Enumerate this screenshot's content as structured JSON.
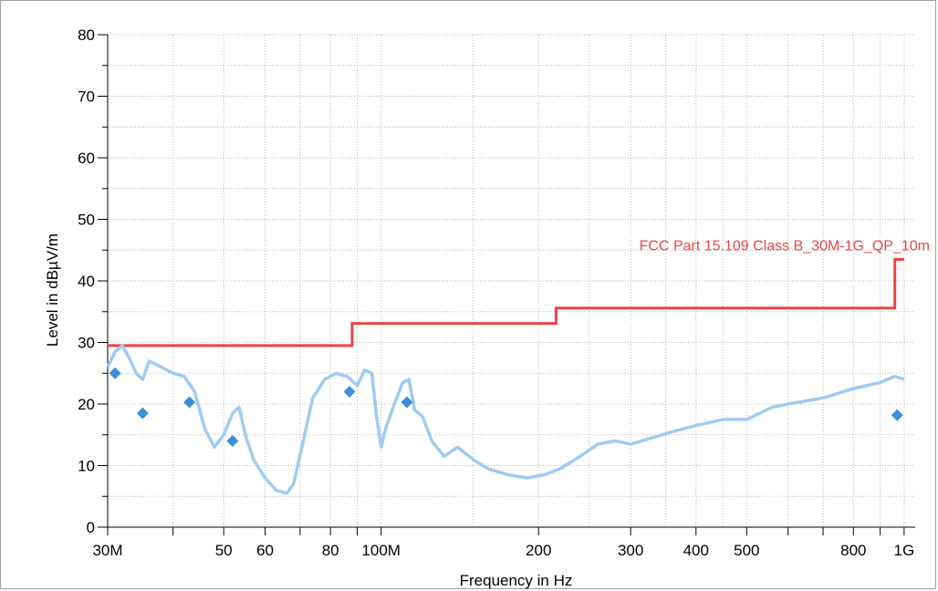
{
  "chart_data": {
    "type": "line",
    "xlabel": "Frequency in Hz",
    "ylabel": "Level in dBµV/m",
    "x_scale": "log",
    "xlim": [
      30000000,
      1050000000
    ],
    "ylim": [
      0,
      80
    ],
    "y_ticks": [
      0,
      10,
      20,
      30,
      40,
      50,
      60,
      70,
      80
    ],
    "x_ticks": [
      {
        "value": 30000000,
        "label": "30M"
      },
      {
        "value": 50000000,
        "label": "50"
      },
      {
        "value": 60000000,
        "label": "60"
      },
      {
        "value": 80000000,
        "label": "80"
      },
      {
        "value": 100000000,
        "label": "100M"
      },
      {
        "value": 200000000,
        "label": "200"
      },
      {
        "value": 300000000,
        "label": "300"
      },
      {
        "value": 400000000,
        "label": "400"
      },
      {
        "value": 500000000,
        "label": "500"
      },
      {
        "value": 800000000,
        "label": "800"
      },
      {
        "value": 1000000000,
        "label": "1G"
      }
    ],
    "x_minor_ticks": [
      40000000,
      70000000,
      90000000,
      600000000,
      700000000,
      900000000
    ],
    "grid": true,
    "colors": {
      "limit": "#ee4444",
      "trace": "#9ecbf2",
      "points": "#3d8fd6"
    },
    "series": [
      {
        "name": "FCC Part 15.109 Class B_30M-1G_QP_10m",
        "kind": "limit",
        "x": [
          30000000,
          88000000,
          88000000,
          216000000,
          216000000,
          960000000,
          960000000,
          1000000000
        ],
        "y": [
          29.5,
          29.5,
          33.1,
          33.1,
          35.6,
          35.6,
          43.5,
          43.5
        ]
      },
      {
        "kind": "trace",
        "x": [
          30000000,
          31000000,
          32000000,
          33000000,
          34000000,
          35000000,
          36000000,
          38000000,
          40000000,
          42000000,
          44000000,
          46000000,
          48000000,
          50000000,
          52000000,
          53500000,
          55000000,
          57000000,
          60000000,
          63000000,
          66000000,
          68000000,
          71000000,
          74000000,
          78000000,
          82000000,
          86000000,
          90000000,
          93000000,
          96000000,
          98000000,
          100000000,
          102000000,
          106000000,
          110000000,
          113000000,
          116000000,
          120000000,
          125000000,
          132000000,
          140000000,
          150000000,
          160000000,
          175000000,
          190000000,
          205000000,
          220000000,
          240000000,
          260000000,
          280000000,
          300000000,
          330000000,
          360000000,
          400000000,
          450000000,
          500000000,
          560000000,
          600000000,
          700000000,
          800000000,
          900000000,
          960000000,
          1000000000
        ],
        "y": [
          26,
          28.5,
          29.5,
          27.5,
          25,
          24,
          27,
          26,
          25,
          24.5,
          22,
          16,
          13,
          15,
          18.5,
          19.5,
          15,
          11,
          8,
          6,
          5.5,
          7,
          14,
          21,
          24,
          25,
          24.5,
          23,
          25.5,
          25,
          18,
          13,
          16,
          20,
          23.5,
          24,
          19,
          18,
          14,
          11.5,
          13,
          11,
          9.5,
          8.5,
          8,
          8.5,
          9.5,
          11.5,
          13.5,
          14,
          13.5,
          14.5,
          15.5,
          16.5,
          17.5,
          17.5,
          19.5,
          20,
          21,
          22.5,
          23.5,
          24.5,
          24
        ]
      },
      {
        "kind": "points",
        "x": [
          31000000,
          35000000,
          43000000,
          52000000,
          87000000,
          112000000,
          970000000
        ],
        "y": [
          25,
          18.5,
          20.3,
          14,
          22,
          20.3,
          18.2
        ]
      }
    ]
  }
}
